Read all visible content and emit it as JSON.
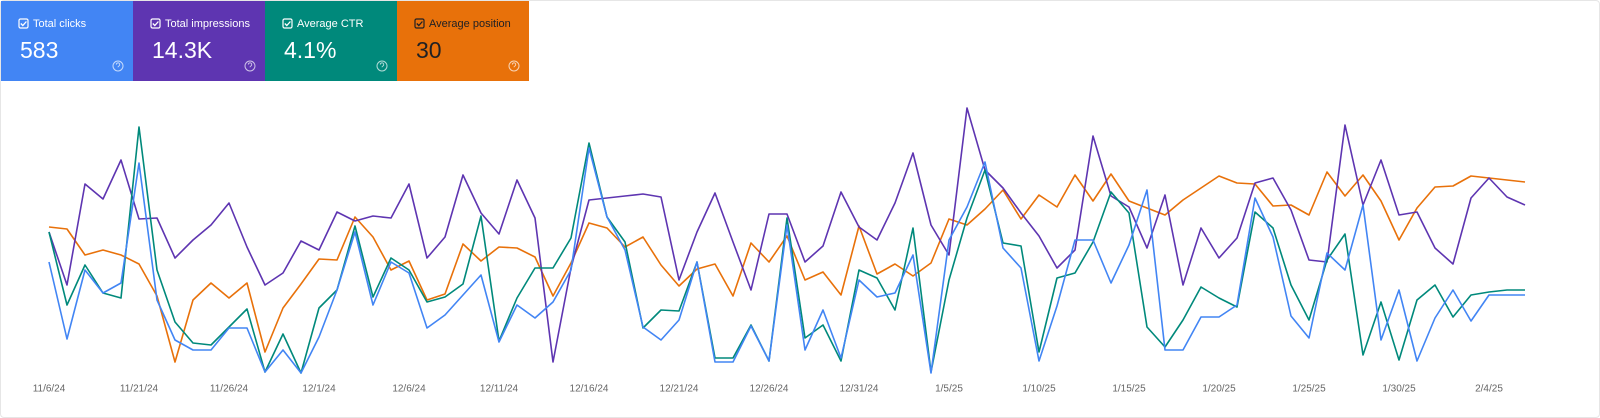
{
  "chart_data": {
    "type": "line",
    "categories": [
      "11/6/24",
      null,
      null,
      null,
      null,
      "11/21/24",
      null,
      null,
      null,
      null,
      "11/26/24",
      null,
      null,
      null,
      null,
      "12/1/24",
      null,
      null,
      null,
      null,
      "12/6/24",
      null,
      null,
      null,
      null,
      "12/11/24",
      null,
      null,
      null,
      null,
      "12/16/24",
      null,
      null,
      null,
      null,
      "12/21/24",
      null,
      null,
      null,
      null,
      "12/26/24",
      null,
      null,
      null,
      null,
      "12/31/24",
      null,
      null,
      null,
      null,
      "1/5/25",
      null,
      null,
      null,
      null,
      "1/10/25",
      null,
      null,
      null,
      null,
      "1/15/25",
      null,
      null,
      null,
      null,
      "1/20/25",
      null,
      null,
      null,
      null,
      "1/25/25",
      null,
      null,
      null,
      null,
      "1/30/25",
      null,
      null,
      null,
      null,
      "2/4/25",
      null,
      null
    ],
    "ylim": [
      0,
      310
    ],
    "summaries": [
      "583",
      "14.3K",
      "4.1%",
      "30"
    ],
    "series": [
      {
        "name": "Total clicks",
        "color": "#4285f4",
        "values": [
          138,
          61,
          130,
          107,
          117,
          237,
          100,
          60,
          50,
          50,
          72,
          72,
          28,
          50,
          27,
          63,
          110,
          168,
          95,
          138,
          127,
          72,
          85,
          105,
          125,
          58,
          95,
          82,
          98,
          130,
          252,
          183,
          150,
          73,
          60,
          80,
          138,
          38,
          38,
          74,
          39,
          175,
          50,
          90,
          42,
          120,
          103,
          107,
          145,
          27,
          160,
          193,
          238,
          152,
          132,
          39,
          94,
          160,
          160,
          117,
          155,
          210,
          50,
          50,
          83,
          83,
          95,
          202,
          163,
          84,
          62,
          147,
          130,
          195,
          60,
          110,
          39,
          82,
          110,
          79,
          105,
          105,
          105
        ]
      },
      {
        "name": "Total impressions",
        "color": "#5e35b1",
        "values": [
          168,
          115,
          216,
          201,
          240,
          181,
          182,
          142,
          160,
          175,
          197,
          153,
          115,
          127,
          159,
          150,
          188,
          179,
          184,
          182,
          216,
          142,
          163,
          225,
          187,
          166,
          220,
          182,
          38,
          132,
          200,
          202,
          204,
          206,
          203,
          120,
          168,
          207,
          158,
          110,
          186,
          186,
          138,
          154,
          208,
          173,
          160,
          197,
          247,
          175,
          145,
          292,
          230,
          212,
          187,
          164,
          132,
          150,
          264,
          204,
          193,
          152,
          205,
          115,
          172,
          142,
          162,
          217,
          222,
          190,
          140,
          138,
          275,
          195,
          240,
          185,
          188,
          152,
          136,
          202,
          222,
          203,
          195
        ]
      },
      {
        "name": "Average CTR",
        "color": "#00897b",
        "values": [
          168,
          95,
          135,
          107,
          102,
          273,
          130,
          78,
          57,
          55,
          73,
          91,
          28,
          66,
          27,
          92,
          110,
          174,
          103,
          142,
          130,
          98,
          103,
          116,
          184,
          59,
          102,
          132,
          132,
          162,
          257,
          183,
          158,
          72,
          90,
          89,
          138,
          42,
          42,
          75,
          39,
          182,
          62,
          75,
          39,
          130,
          122,
          90,
          172,
          28,
          120,
          182,
          230,
          157,
          154,
          48,
          122,
          127,
          158,
          208,
          187,
          73,
          53,
          80,
          113,
          102,
          93,
          188,
          172,
          115,
          80,
          140,
          166,
          45,
          98,
          40,
          100,
          115,
          83,
          105,
          108,
          110,
          110
        ]
      },
      {
        "name": "Average position",
        "color": "#e8710a",
        "values": [
          173,
          171,
          145,
          150,
          145,
          136,
          104,
          38,
          100,
          117,
          102,
          117,
          48,
          92,
          116,
          141,
          140,
          183,
          163,
          130,
          139,
          100,
          106,
          156,
          139,
          153,
          152,
          143,
          104,
          137,
          177,
          172,
          153,
          163,
          135,
          114,
          131,
          136,
          104,
          157,
          138,
          164,
          120,
          128,
          105,
          174,
          126,
          136,
          124,
          137,
          181,
          175,
          191,
          210,
          181,
          205,
          193,
          225,
          199,
          226,
          199,
          192,
          185,
          200,
          212,
          224,
          217,
          216,
          194,
          195,
          185,
          228,
          204,
          225,
          199,
          160,
          192,
          213,
          214,
          224,
          222,
          220,
          218
        ]
      }
    ]
  }
}
